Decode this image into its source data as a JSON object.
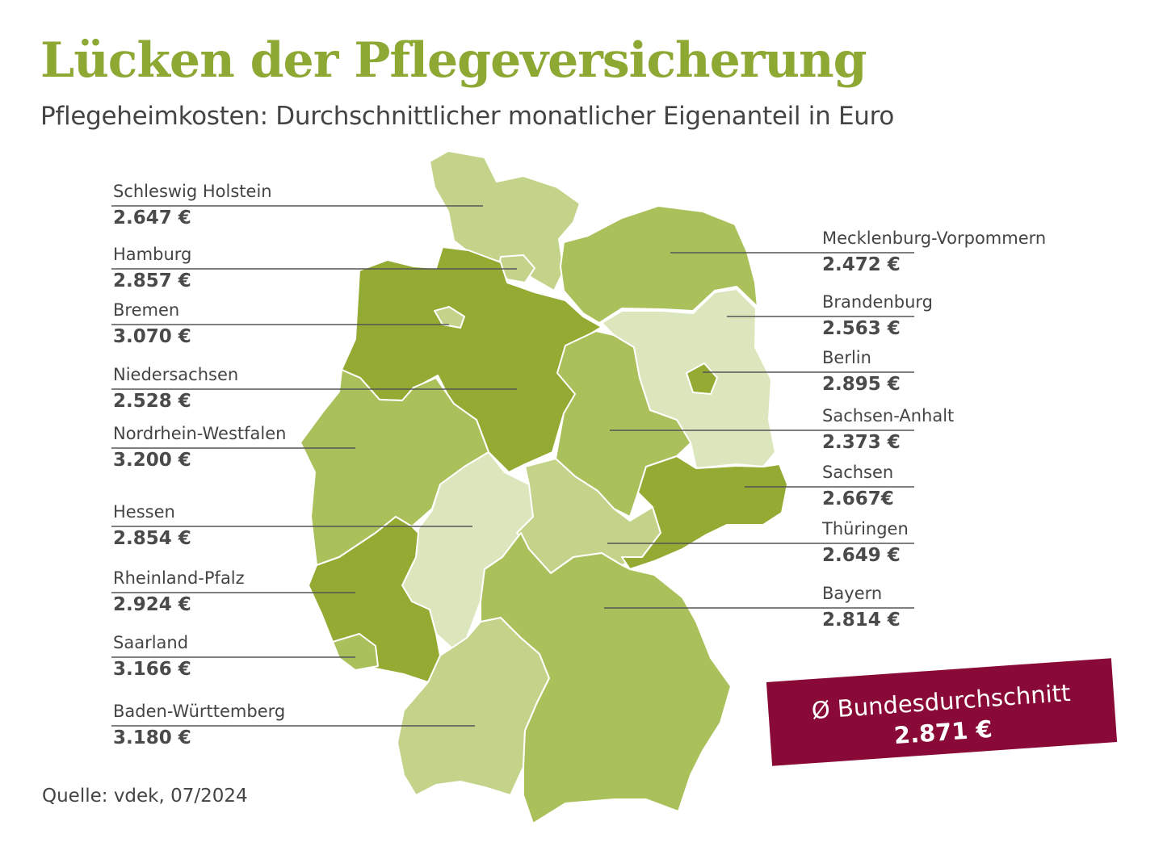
{
  "title": "Lücken der Pflegeversicherung",
  "subtitle": "Pflegeheimkosten: Durchschnittlicher monatlicher Eigenanteil in Euro",
  "source": "Quelle: vdek, 07/2024",
  "average": {
    "label": "Ø Bundesdurchschnitt",
    "value": "2.871 €"
  },
  "colors": {
    "title": "#8ea834",
    "lightest": "#dce6bd",
    "light": "#c3d48a",
    "medium": "#a9c05b",
    "dark": "#93aa33",
    "leader": "#555555",
    "average_box": "#8a0a37"
  },
  "states": [
    {
      "id": "schleswig-holstein",
      "name": "Schleswig Holstein",
      "value": "2.647 €",
      "color": "light"
    },
    {
      "id": "hamburg",
      "name": "Hamburg",
      "value": "2.857 €",
      "color": "light"
    },
    {
      "id": "bremen",
      "name": "Bremen",
      "value": "3.070 €",
      "color": "light"
    },
    {
      "id": "niedersachsen",
      "name": "Niedersachsen",
      "value": "2.528 €",
      "color": "dark"
    },
    {
      "id": "nordrhein-westfalen",
      "name": "Nordrhein-Westfalen",
      "value": "3.200 €",
      "color": "medium"
    },
    {
      "id": "hessen",
      "name": "Hessen",
      "value": "2.854 €",
      "color": "lightest"
    },
    {
      "id": "rheinland-pfalz",
      "name": "Rheinland-Pfalz",
      "value": "2.924 €",
      "color": "dark"
    },
    {
      "id": "saarland",
      "name": "Saarland",
      "value": "3.166 €",
      "color": "medium"
    },
    {
      "id": "baden-wuerttemberg",
      "name": "Baden-Württemberg",
      "value": "3.180 €",
      "color": "light"
    },
    {
      "id": "mecklenburg-vorpommern",
      "name": "Mecklenburg-Vorpommern",
      "value": "2.472 €",
      "color": "medium"
    },
    {
      "id": "brandenburg",
      "name": "Brandenburg",
      "value": "2.563 €",
      "color": "lightest"
    },
    {
      "id": "berlin",
      "name": "Berlin",
      "value": "2.895 €",
      "color": "dark"
    },
    {
      "id": "sachsen-anhalt",
      "name": "Sachsen-Anhalt",
      "value": "2.373 €",
      "color": "medium"
    },
    {
      "id": "sachsen",
      "name": "Sachsen",
      "value": "2.667€",
      "color": "dark"
    },
    {
      "id": "thueringen",
      "name": "Thüringen",
      "value": "2.649 €",
      "color": "light"
    },
    {
      "id": "bayern",
      "name": "Bayern",
      "value": "2.814 €",
      "color": "medium"
    }
  ]
}
